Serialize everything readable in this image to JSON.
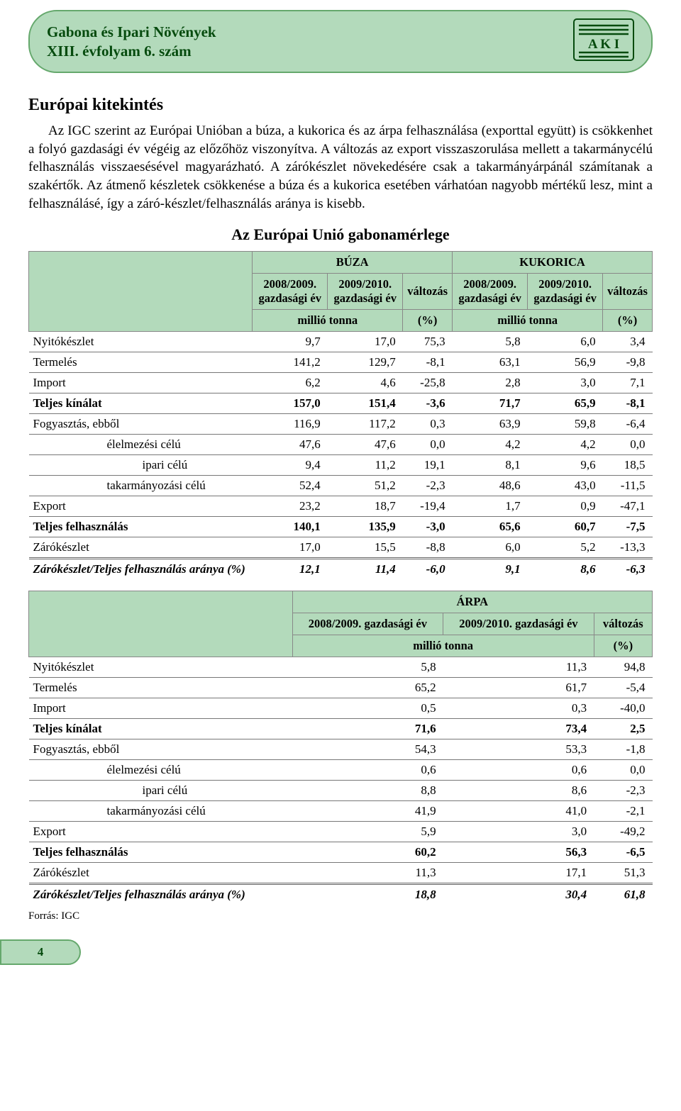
{
  "header": {
    "line1": "Gabona és Ipari Növények",
    "line2": "XIII. évfolyam 6. szám",
    "logoLabel": "A K I"
  },
  "sectionTitle": "Európai kitekintés",
  "paragraph": "Az IGC szerint az Európai Unióban a búza, a kukorica és az árpa felhasználása (exporttal együtt) is csökkenhet a folyó gazdasági év végéig az előzőhöz viszonyítva. A változás az export visszaszorulása mellett a takarmánycélú felhasználás visszaesésével magyarázható. A zárókészlet növekedésére csak a takarmányárpánál számítanak a szakértők. Az átmenő készletek csökkenése a búza és a kukorica esetében várhatóan nagyobb mértékű lesz, mint a felhasználásé, így a záró-készlet/felhasználás aránya is kisebb.",
  "tableTitle": "Az Európai Unió gabonamérlege",
  "colors": {
    "headerBg": "#b3dabb",
    "headerBorder": "#65a86c",
    "darkGreen": "#064b0e"
  },
  "table1": {
    "group1": "BÚZA",
    "group2": "KUKORICA",
    "col1": "2008/2009. gazdasági év",
    "col2": "2009/2010. gazdasági év",
    "col3": "változás",
    "unit": "millió  tonna",
    "unitPct": "(%)",
    "rows": [
      {
        "label": "Nyitókészlet",
        "v": [
          "9,7",
          "17,0",
          "75,3",
          "5,8",
          "6,0",
          "3,4"
        ],
        "class": ""
      },
      {
        "label": "Termelés",
        "v": [
          "141,2",
          "129,7",
          "-8,1",
          "63,1",
          "56,9",
          "-9,8"
        ],
        "class": ""
      },
      {
        "label": "Import",
        "v": [
          "6,2",
          "4,6",
          "-25,8",
          "2,8",
          "3,0",
          "7,1"
        ],
        "class": ""
      },
      {
        "label": "Teljes kínálat",
        "v": [
          "157,0",
          "151,4",
          "-3,6",
          "71,7",
          "65,9",
          "-8,1"
        ],
        "class": "bold"
      },
      {
        "label": "Fogyasztás, ebből",
        "v": [
          "116,9",
          "117,2",
          "0,3",
          "63,9",
          "59,8",
          "-6,4"
        ],
        "class": ""
      },
      {
        "label": "élelmezési célú",
        "v": [
          "47,6",
          "47,6",
          "0,0",
          "4,2",
          "4,2",
          "0,0"
        ],
        "class": "",
        "indent": "indent1"
      },
      {
        "label": "ipari célú",
        "v": [
          "9,4",
          "11,2",
          "19,1",
          "8,1",
          "9,6",
          "18,5"
        ],
        "class": "",
        "indent": "indent2"
      },
      {
        "label": "takarmányozási célú",
        "v": [
          "52,4",
          "51,2",
          "-2,3",
          "48,6",
          "43,0",
          "-11,5"
        ],
        "class": "",
        "indent": "indent1"
      },
      {
        "label": "Export",
        "v": [
          "23,2",
          "18,7",
          "-19,4",
          "1,7",
          "0,9",
          "-47,1"
        ],
        "class": ""
      },
      {
        "label": "Teljes felhasználás",
        "v": [
          "140,1",
          "135,9",
          "-3,0",
          "65,6",
          "60,7",
          "-7,5"
        ],
        "class": "bold"
      },
      {
        "label": "Zárókészlet",
        "v": [
          "17,0",
          "15,5",
          "-8,8",
          "6,0",
          "5,2",
          "-13,3"
        ],
        "class": "thick"
      },
      {
        "label": "Zárókészlet/Teljes felhasználás aránya (%)",
        "v": [
          "12,1",
          "11,4",
          "-6,0",
          "9,1",
          "8,6",
          "-6,3"
        ],
        "class": "italic noBorder"
      }
    ]
  },
  "table2": {
    "group": "ÁRPA",
    "col1": "2008/2009. gazdasági év",
    "col2": "2009/2010. gazdasági év",
    "col3": "változás",
    "unit": "millió  tonna",
    "unitPct": "(%)",
    "rows": [
      {
        "label": "Nyitókészlet",
        "v": [
          "5,8",
          "11,3",
          "94,8"
        ],
        "class": ""
      },
      {
        "label": "Termelés",
        "v": [
          "65,2",
          "61,7",
          "-5,4"
        ],
        "class": ""
      },
      {
        "label": "Import",
        "v": [
          "0,5",
          "0,3",
          "-40,0"
        ],
        "class": ""
      },
      {
        "label": "Teljes kínálat",
        "v": [
          "71,6",
          "73,4",
          "2,5"
        ],
        "class": "bold"
      },
      {
        "label": "Fogyasztás, ebből",
        "v": [
          "54,3",
          "53,3",
          "-1,8"
        ],
        "class": ""
      },
      {
        "label": "élelmezési célú",
        "v": [
          "0,6",
          "0,6",
          "0,0"
        ],
        "class": "",
        "indent": "indent1"
      },
      {
        "label": "ipari célú",
        "v": [
          "8,8",
          "8,6",
          "-2,3"
        ],
        "class": "",
        "indent": "indent2"
      },
      {
        "label": "takarmányozási célú",
        "v": [
          "41,9",
          "41,0",
          "-2,1"
        ],
        "class": "",
        "indent": "indent1"
      },
      {
        "label": "Export",
        "v": [
          "5,9",
          "3,0",
          "-49,2"
        ],
        "class": ""
      },
      {
        "label": "Teljes felhasználás",
        "v": [
          "60,2",
          "56,3",
          "-6,5"
        ],
        "class": "bold"
      },
      {
        "label": "Zárókészlet",
        "v": [
          "11,3",
          "17,1",
          "51,3"
        ],
        "class": "thick"
      },
      {
        "label": "Zárókészlet/Teljes felhasználás aránya (%)",
        "v": [
          "18,8",
          "30,4",
          "61,8"
        ],
        "class": "italic noBorder"
      }
    ]
  },
  "source": "Forrás: IGC",
  "pageNo": "4"
}
